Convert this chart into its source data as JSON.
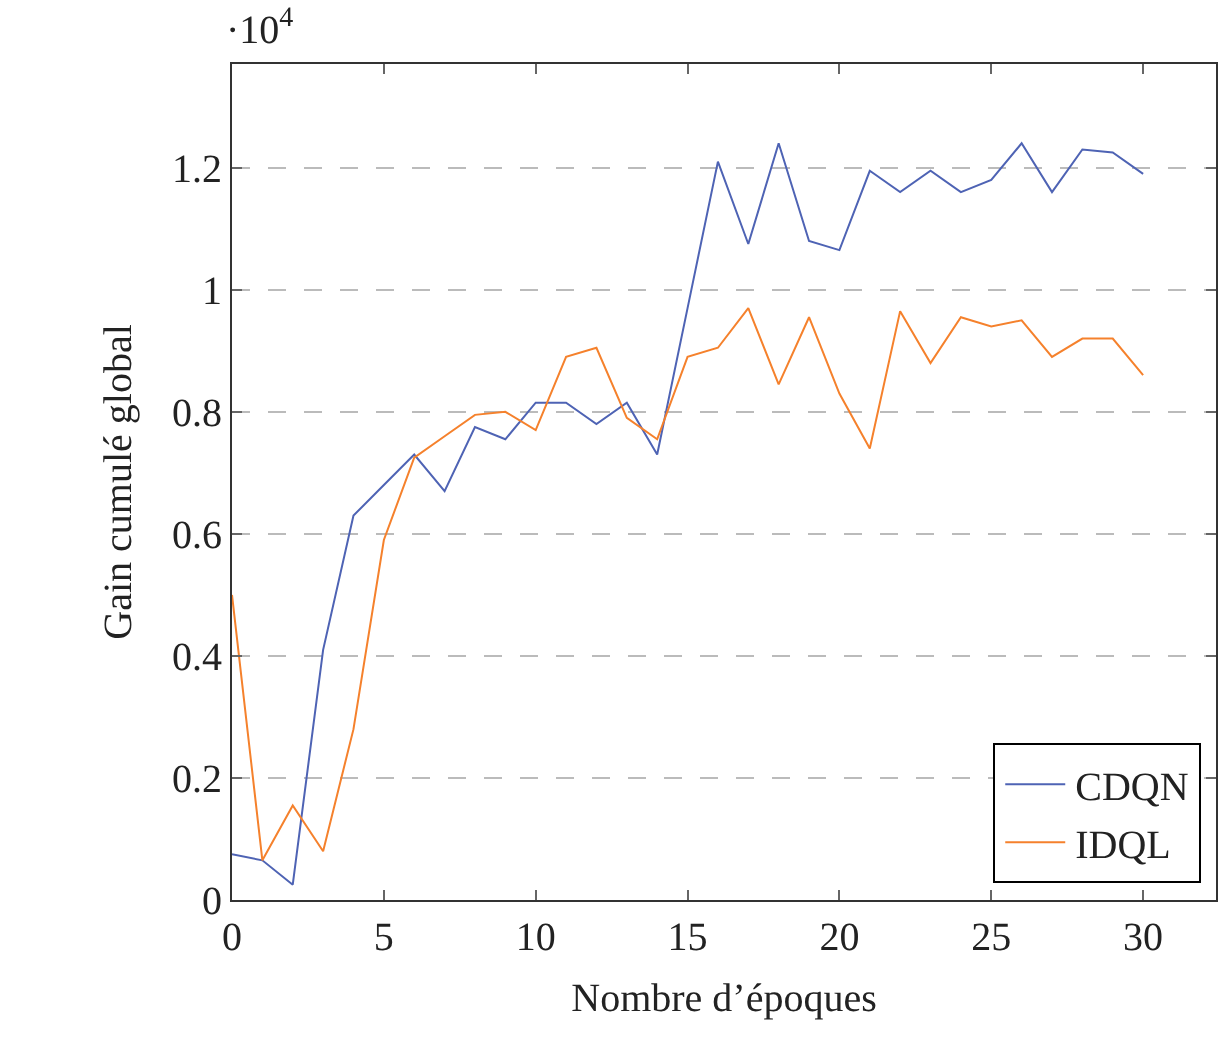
{
  "chart_data": {
    "type": "line",
    "xlabel": "Nombre d’époques",
    "ylabel": "Gain cumulé global",
    "annotations": [
      "·10$^{4}$"
    ],
    "x": [
      0,
      1,
      2,
      3,
      4,
      5,
      6,
      7,
      8,
      9,
      10,
      11,
      12,
      13,
      14,
      15,
      16,
      17,
      18,
      19,
      20,
      21,
      22,
      23,
      24,
      25,
      26,
      27,
      28,
      29,
      30
    ],
    "series": [
      {
        "name": "CDQN",
        "color": "#4e63b4",
        "values": [
          0.075,
          0.065,
          0.025,
          0.41,
          0.63,
          0.68,
          0.73,
          0.67,
          0.775,
          0.755,
          0.815,
          0.815,
          0.78,
          0.815,
          0.73,
          0.97,
          1.21,
          1.075,
          1.24,
          1.08,
          1.065,
          1.195,
          1.16,
          1.195,
          1.16,
          1.18,
          1.24,
          1.16,
          1.23,
          1.225,
          1.19
        ]
      },
      {
        "name": "IDQL",
        "color": "#f5812c",
        "values": [
          0.5,
          0.065,
          0.155,
          0.08,
          0.28,
          0.59,
          0.725,
          0.76,
          0.795,
          0.8,
          0.77,
          0.89,
          0.905,
          0.79,
          0.755,
          0.89,
          0.905,
          0.97,
          0.845,
          0.955,
          0.83,
          0.74,
          0.965,
          0.88,
          0.955,
          0.94,
          0.95,
          0.89,
          0.92,
          0.92,
          0.86
        ]
      }
    ],
    "xlim": [
      0,
      32.4
    ],
    "xticks": [
      0,
      5,
      10,
      15,
      20,
      25,
      30
    ],
    "ylim": [
      0,
      1.37
    ],
    "yticks": [
      0,
      0.2,
      0.4,
      0.6,
      0.8,
      1,
      1.2
    ],
    "grid": "y",
    "legend": "bottom right",
    "marker": "none",
    "line_style": "solid"
  }
}
